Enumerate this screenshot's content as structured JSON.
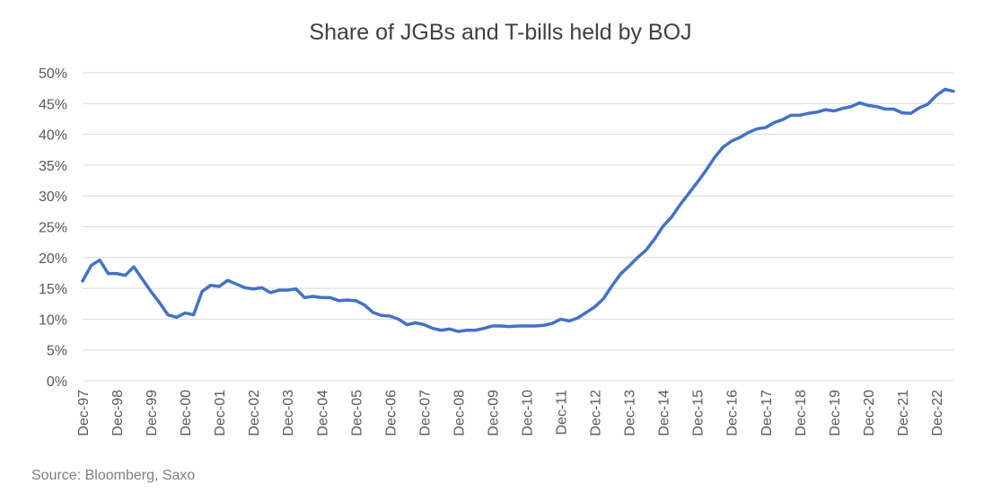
{
  "chart_data": {
    "type": "line",
    "title": "Share of JGBs and T-bills held by BOJ",
    "source": "Source: Bloomberg, Saxo",
    "xlabel": "",
    "ylabel": "",
    "ylim": [
      0,
      50
    ],
    "y_ticks": [
      "0%",
      "5%",
      "10%",
      "15%",
      "20%",
      "25%",
      "30%",
      "35%",
      "40%",
      "45%",
      "50%"
    ],
    "x_ticks": [
      "Dec-97",
      "Dec-98",
      "Dec-99",
      "Dec-00",
      "Dec-01",
      "Dec-02",
      "Dec-03",
      "Dec-04",
      "Dec-05",
      "Dec-06",
      "Dec-07",
      "Dec-08",
      "Dec-09",
      "Dec-10",
      "Dec-11",
      "Dec-12",
      "Dec-13",
      "Dec-14",
      "Dec-15",
      "Dec-16",
      "Dec-17",
      "Dec-18",
      "Dec-19",
      "Dec-20",
      "Dec-21",
      "Dec-22"
    ],
    "grid": true,
    "color": "#4472c4",
    "series": [
      {
        "name": "",
        "x_start": "Dec-97",
        "frequency": "quarterly",
        "values": [
          16.2,
          18.7,
          19.6,
          17.4,
          17.4,
          17.1,
          18.5,
          16.5,
          14.5,
          12.7,
          10.7,
          10.3,
          11.0,
          10.7,
          14.5,
          15.5,
          15.3,
          16.3,
          15.7,
          15.1,
          14.9,
          15.1,
          14.3,
          14.7,
          14.7,
          14.9,
          13.5,
          13.7,
          13.5,
          13.5,
          13.0,
          13.1,
          13.0,
          12.3,
          11.1,
          10.6,
          10.5,
          10.0,
          9.1,
          9.4,
          9.1,
          8.5,
          8.2,
          8.4,
          8.0,
          8.2,
          8.2,
          8.5,
          8.9,
          8.9,
          8.8,
          8.9,
          8.9,
          8.9,
          9.0,
          9.3,
          10.0,
          9.7,
          10.2,
          11.1,
          12.0,
          13.3,
          15.4,
          17.3,
          18.6,
          20.0,
          21.2,
          23.0,
          25.1,
          26.6,
          28.6,
          30.4,
          32.2,
          34.1,
          36.2,
          37.9,
          38.9,
          39.5,
          40.3,
          40.9,
          41.1,
          41.9,
          42.4,
          43.1,
          43.1,
          43.4,
          43.6,
          44.0,
          43.8,
          44.2,
          44.5,
          45.1,
          44.7,
          44.5,
          44.1,
          44.1,
          43.5,
          43.4,
          44.3,
          44.9,
          46.3,
          47.3,
          47.0
        ]
      }
    ]
  }
}
